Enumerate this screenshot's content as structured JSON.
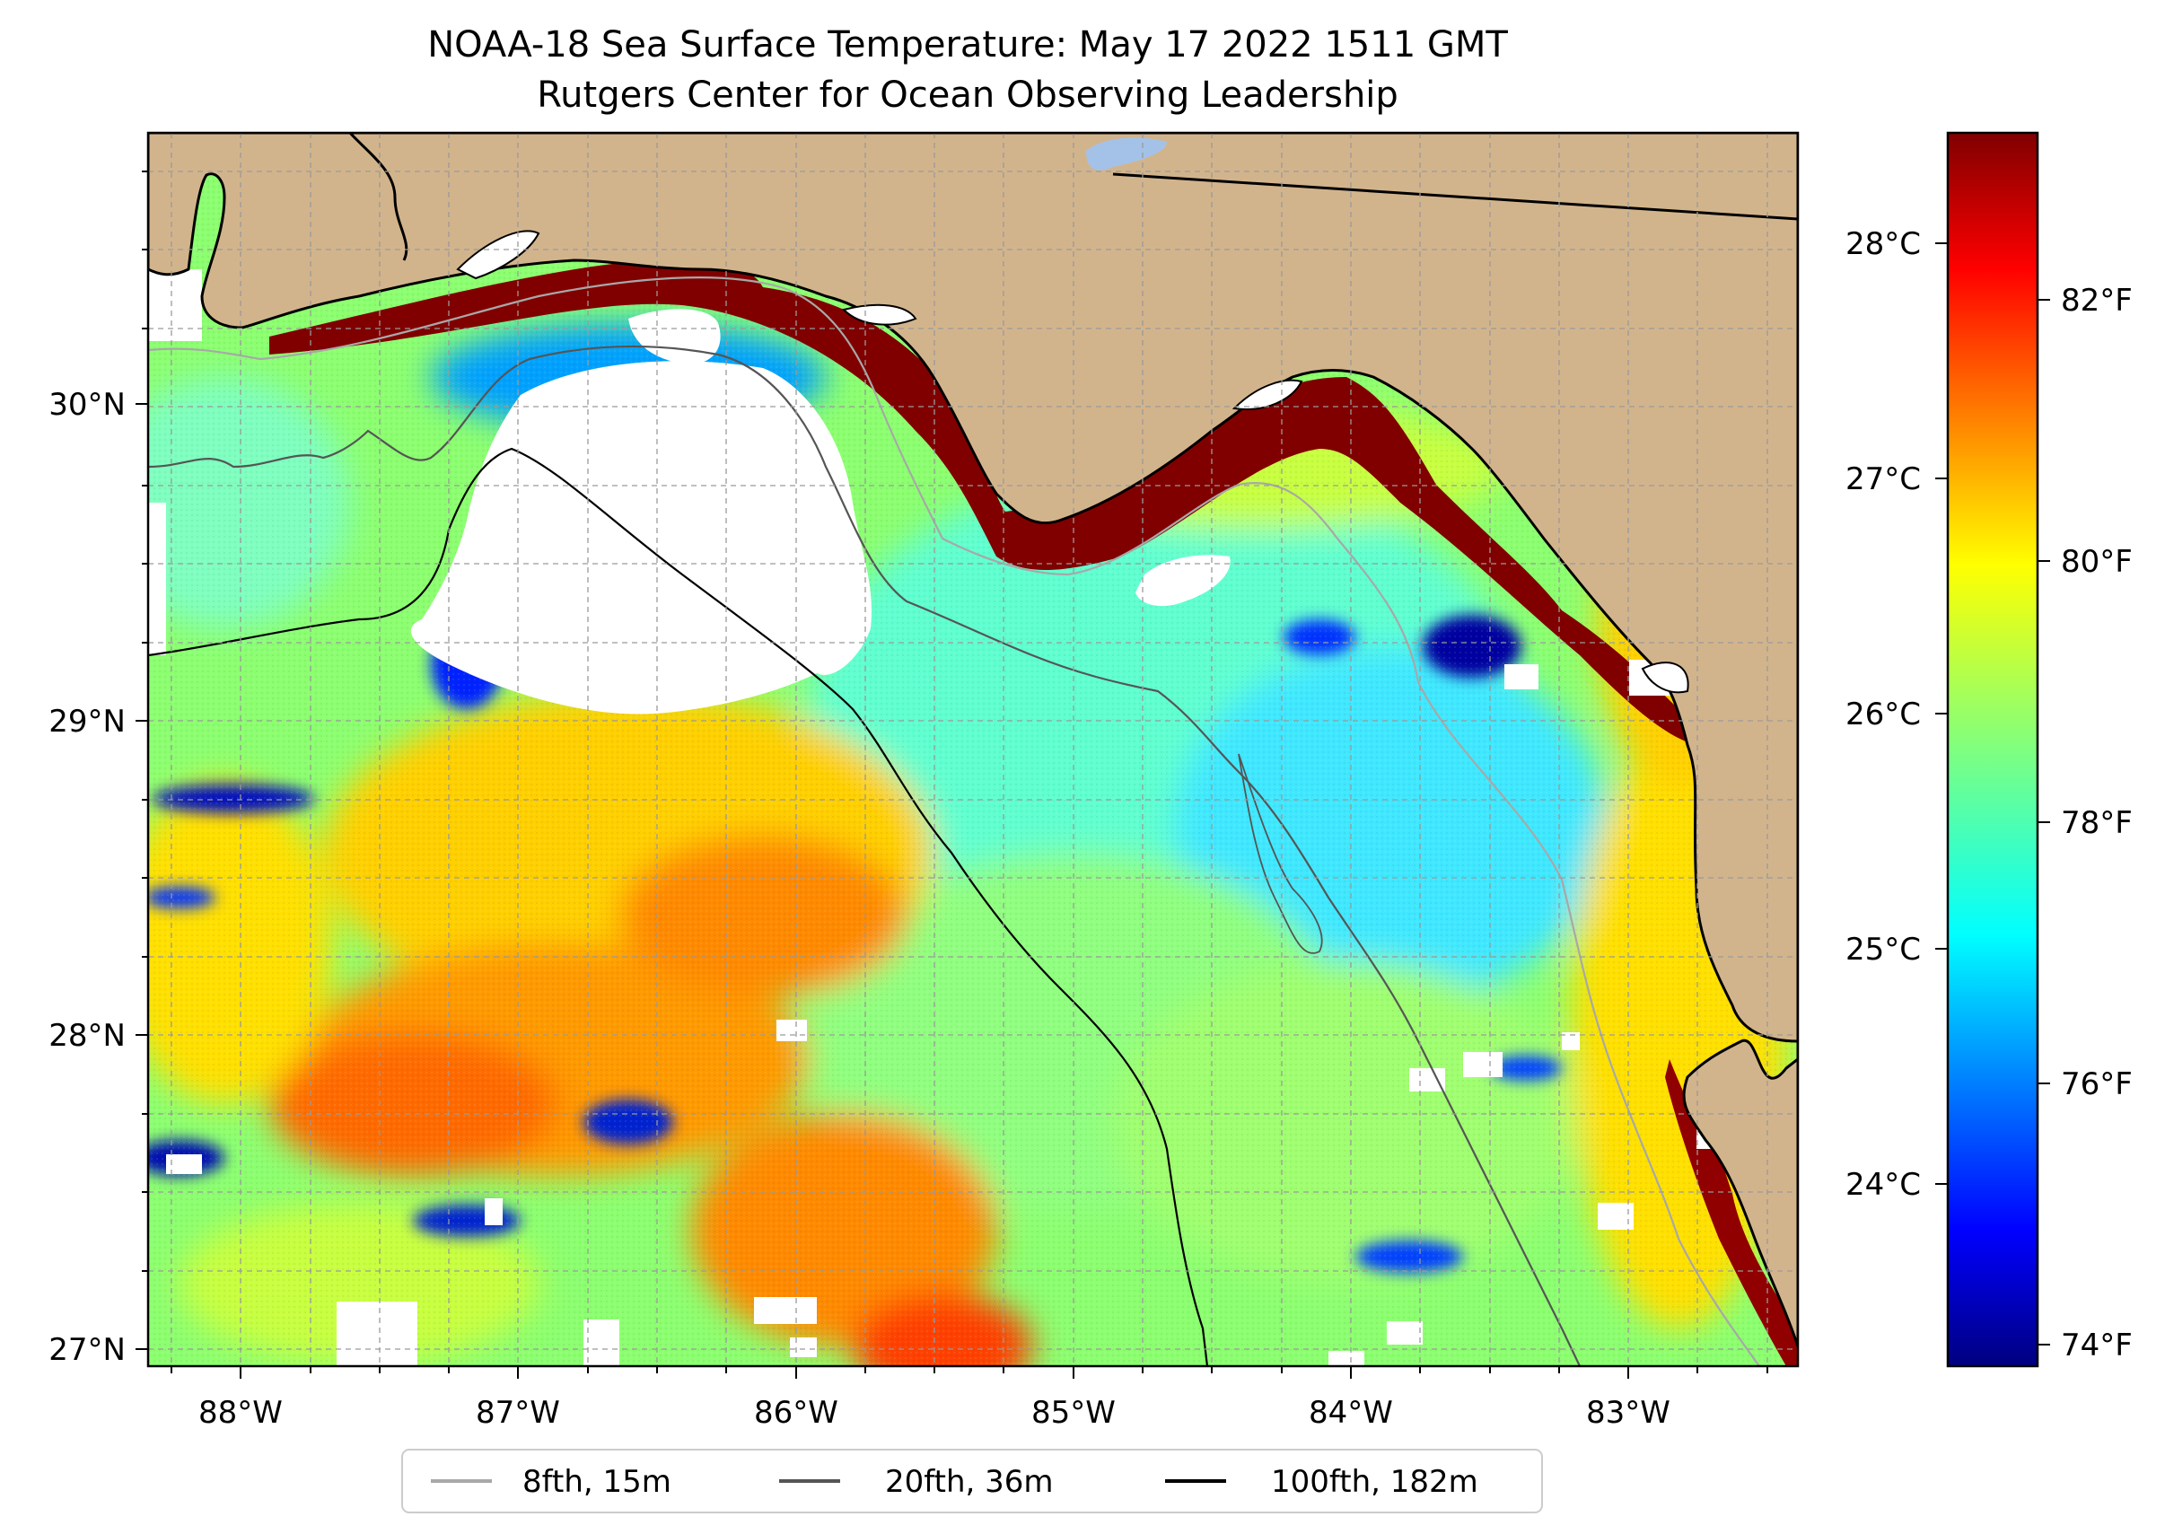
{
  "title": {
    "line1": "NOAA-18 Sea Surface Temperature: May 17 2022 1511 GMT",
    "line2": "Rutgers Center for Ocean Observing Leadership"
  },
  "map": {
    "lon_ticks": [
      "88°W",
      "87°W",
      "86°W",
      "85°W",
      "84°W",
      "83°W"
    ],
    "lat_ticks": [
      "30°N",
      "29°N",
      "28°N",
      "27°N"
    ],
    "lon_range": [
      -88.33,
      -82.42
    ],
    "lat_range": [
      26.93,
      30.85
    ]
  },
  "colorbar": {
    "celsius": [
      "28°C",
      "27°C",
      "26°C",
      "25°C",
      "24°C"
    ],
    "fahrenheit": [
      "82°F",
      "80°F",
      "78°F",
      "76°F",
      "74°F"
    ],
    "min_f": 73.8,
    "max_f": 83.6
  },
  "legend": {
    "items": [
      {
        "label": "8fth, 15m",
        "color": "#a8a8a8"
      },
      {
        "label": "20fth, 36m",
        "color": "#555555"
      },
      {
        "label": "100fth, 182m",
        "color": "#000000"
      }
    ]
  },
  "colors": {
    "land": "#d2b48c",
    "lake": "#a4c2e8",
    "cloud": "#ffffff"
  }
}
